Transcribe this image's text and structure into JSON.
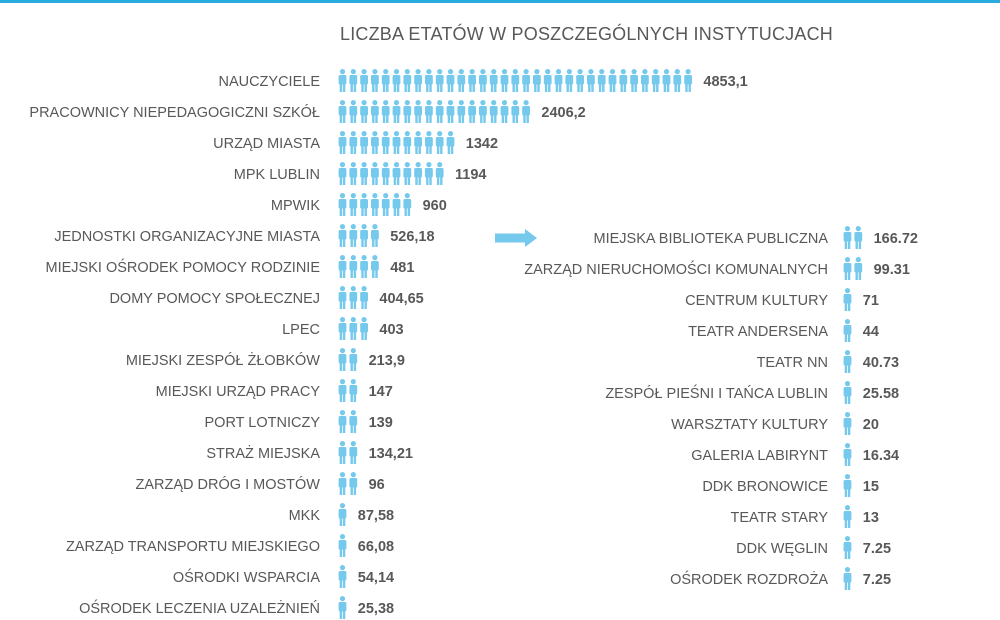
{
  "chart_data": {
    "type": "bar",
    "title": "LICZBA ETATÓW W POSZCZEGÓLNYCH INSTYTUCJACH",
    "xlabel": "",
    "ylabel": "",
    "unit_icon": "person-icon",
    "colors": {
      "accent": "#74c9ec",
      "text": "#58585a",
      "arrow": "#74c9ec",
      "top_line": "#29abe2"
    },
    "series": [
      {
        "categories": [
          "NAUCZYCIELE",
          "PRACOWNICY NIEPEDAGOGICZNI SZKÓŁ",
          "URZĄD MIASTA",
          "MPK LUBLIN",
          "MPWIK",
          "JEDNOSTKI ORGANIZACYJNE MIASTA",
          "MIEJSKI OŚRODEK POMOCY RODZINIE",
          "DOMY POMOCY SPOŁECZNEJ",
          "LPEC",
          "MIEJSKI ZESPÓŁ ŻŁOBKÓW",
          "MIEJSKI URZĄD PRACY",
          "PORT LOTNICZY",
          "STRAŻ MIEJSKA",
          "ZARZĄD DRÓG I MOSTÓW",
          "MKK",
          "ZARZĄD TRANSPORTU MIEJSKIEGO",
          "OŚRODKI WSPARCIA",
          "OŚRODEK LECZENIA UZALEŻNIEŃ"
        ],
        "values": [
          4853.1,
          2406.2,
          1342,
          1194,
          960,
          526.18,
          481,
          404.65,
          403,
          213.9,
          147,
          139,
          134.21,
          96,
          87.58,
          66.08,
          54.14,
          25.38
        ],
        "value_labels": [
          "4853,1",
          "2406,2",
          "1342",
          "1194",
          "960",
          "526,18",
          "481",
          "404,65",
          "403",
          "213,9",
          "147",
          "139",
          "134,21",
          "96",
          "87,58",
          "66,08",
          "54,14",
          "25,38"
        ],
        "icon_counts": [
          33,
          18,
          11,
          10,
          7,
          4,
          4,
          3,
          3,
          2,
          2,
          2,
          2,
          2,
          1,
          1,
          1,
          1
        ]
      },
      {
        "categories": [
          "MIEJSKA BIBLIOTEKA PUBLICZNA",
          "ZARZĄD NIERUCHOMOŚCI KOMUNALNYCH",
          "CENTRUM KULTURY",
          "TEATR ANDERSENA",
          "TEATR NN",
          "ZESPÓŁ PIEŚNI I TAŃCA LUBLIN",
          "WARSZTATY KULTURY",
          "GALERIA LABIRYNT",
          "DDK BRONOWICE",
          "TEATR STARY",
          "DDK WĘGLIN",
          "OŚRODEK ROZDROŻA"
        ],
        "values": [
          166.72,
          99.31,
          71,
          44,
          40.73,
          25.58,
          20,
          16.34,
          15,
          13,
          7.25,
          7.25
        ],
        "value_labels": [
          "166.72",
          "99.31",
          "71",
          "44",
          "40.73",
          "25.58",
          "20",
          "16.34",
          "15",
          "13",
          "7.25",
          "7.25"
        ],
        "icon_counts": [
          2,
          2,
          1,
          1,
          1,
          1,
          1,
          1,
          1,
          1,
          1,
          1
        ]
      }
    ]
  }
}
